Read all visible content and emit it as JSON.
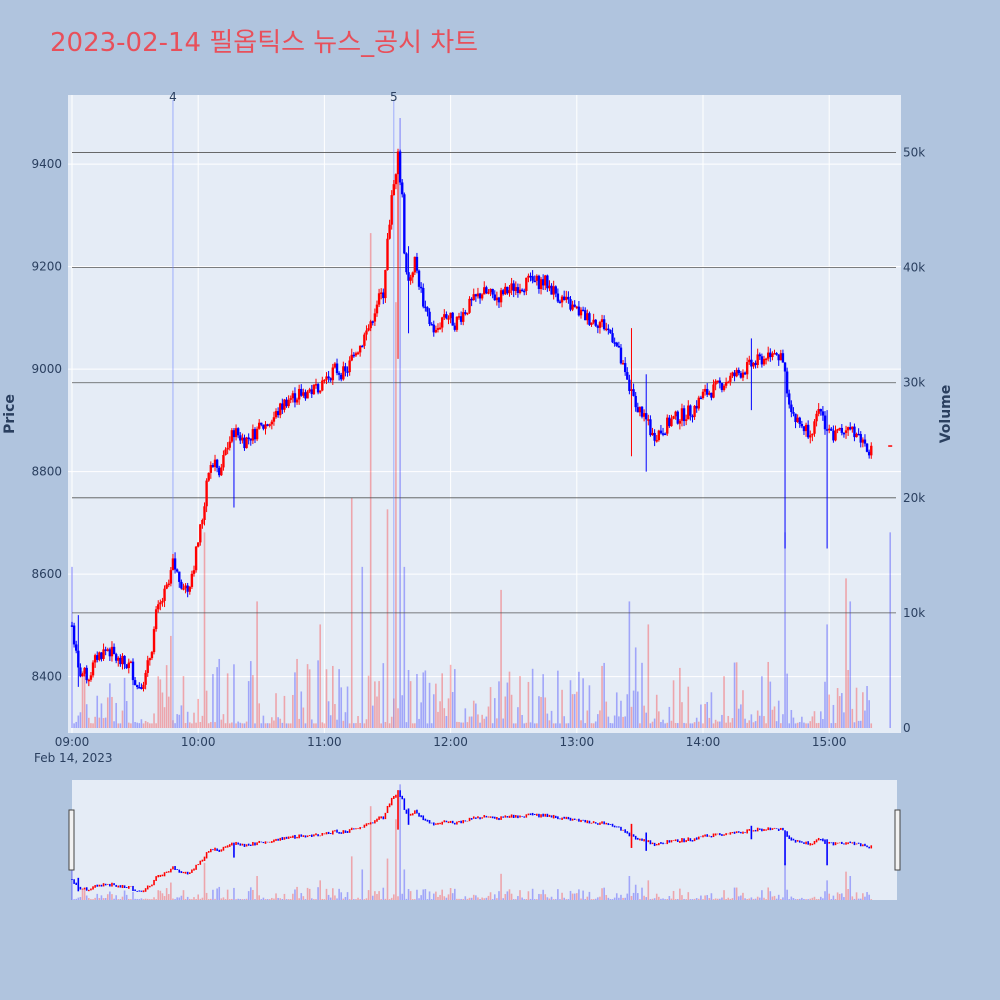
{
  "title": "2023-02-14 필옵틱스 뉴스_공시 차트",
  "colors": {
    "up": "#ff0000",
    "down": "#0000ff",
    "title": "#e8505b",
    "plot_bg": "#e5ecf6",
    "page_bg": "#b0c4de"
  },
  "chart_data": {
    "type": "candlestick",
    "ylabel": "Price",
    "y2label": "Volume",
    "ylim": [
      8290,
      9535
    ],
    "y2lim": [
      0,
      55000
    ],
    "y_ticks": [
      "8400",
      "8600",
      "8800",
      "9000",
      "9200",
      "9400"
    ],
    "y2_ticks": [
      "0",
      "10k",
      "20k",
      "30k",
      "40k",
      "50k"
    ],
    "x_ticks": [
      "09:00",
      "10:00",
      "11:00",
      "12:00",
      "13:00",
      "14:00",
      "15:00"
    ],
    "x_date_label": "Feb 14, 2023",
    "volume_hlines": [
      10000,
      20000,
      30000,
      40000,
      50000
    ],
    "events": [
      {
        "label": "4",
        "time": "09:48"
      },
      {
        "label": "5",
        "time": "11:33"
      }
    ],
    "price_path": [
      [
        "09:00",
        8500
      ],
      [
        "09:03",
        8410
      ],
      [
        "09:08",
        8400
      ],
      [
        "09:12",
        8440
      ],
      [
        "09:17",
        8455
      ],
      [
        "09:22",
        8430
      ],
      [
        "09:28",
        8420
      ],
      [
        "09:31",
        8380
      ],
      [
        "09:35",
        8400
      ],
      [
        "09:38",
        8460
      ],
      [
        "09:40",
        8520
      ],
      [
        "09:43",
        8550
      ],
      [
        "09:46",
        8580
      ],
      [
        "09:48",
        8620
      ],
      [
        "09:51",
        8590
      ],
      [
        "09:55",
        8570
      ],
      [
        "09:58",
        8620
      ],
      [
        "10:02",
        8710
      ],
      [
        "10:05",
        8800
      ],
      [
        "10:08",
        8820
      ],
      [
        "10:10",
        8790
      ],
      [
        "10:13",
        8840
      ],
      [
        "10:17",
        8880
      ],
      [
        "10:22",
        8860
      ],
      [
        "10:28",
        8880
      ],
      [
        "10:35",
        8900
      ],
      [
        "10:42",
        8940
      ],
      [
        "10:48",
        8950
      ],
      [
        "10:55",
        8960
      ],
      [
        "11:00",
        8980
      ],
      [
        "11:05",
        9000
      ],
      [
        "11:10",
        8990
      ],
      [
        "11:13",
        9020
      ],
      [
        "11:17",
        9050
      ],
      [
        "11:21",
        9080
      ],
      [
        "11:25",
        9130
      ],
      [
        "11:28",
        9150
      ],
      [
        "11:30",
        9250
      ],
      [
        "11:32",
        9330
      ],
      [
        "11:35",
        9420
      ],
      [
        "11:37",
        9330
      ],
      [
        "11:38",
        9230
      ],
      [
        "11:40",
        9170
      ],
      [
        "11:43",
        9210
      ],
      [
        "11:46",
        9150
      ],
      [
        "11:49",
        9100
      ],
      [
        "11:53",
        9070
      ],
      [
        "11:57",
        9110
      ],
      [
        "12:02",
        9090
      ],
      [
        "12:08",
        9120
      ],
      [
        "12:15",
        9150
      ],
      [
        "12:22",
        9140
      ],
      [
        "12:30",
        9160
      ],
      [
        "12:38",
        9170
      ],
      [
        "12:45",
        9170
      ],
      [
        "12:52",
        9140
      ],
      [
        "12:58",
        9120
      ],
      [
        "13:05",
        9100
      ],
      [
        "13:12",
        9090
      ],
      [
        "13:18",
        9060
      ],
      [
        "13:22",
        9000
      ],
      [
        "13:25",
        8960
      ],
      [
        "13:28",
        8930
      ],
      [
        "13:32",
        8910
      ],
      [
        "13:36",
        8870
      ],
      [
        "13:40",
        8880
      ],
      [
        "13:45",
        8900
      ],
      [
        "13:50",
        8910
      ],
      [
        "13:55",
        8920
      ],
      [
        "14:00",
        8950
      ],
      [
        "14:05",
        8960
      ],
      [
        "14:12",
        8980
      ],
      [
        "14:20",
        9000
      ],
      [
        "14:28",
        9020
      ],
      [
        "14:34",
        9040
      ],
      [
        "14:38",
        9010
      ],
      [
        "14:41",
        8940
      ],
      [
        "14:44",
        8900
      ],
      [
        "14:47",
        8890
      ],
      [
        "14:50",
        8880
      ],
      [
        "14:53",
        8890
      ],
      [
        "14:56",
        8920
      ],
      [
        "14:59",
        8880
      ],
      [
        "15:02",
        8870
      ],
      [
        "15:06",
        8880
      ],
      [
        "15:10",
        8890
      ],
      [
        "15:14",
        8870
      ],
      [
        "15:18",
        8850
      ],
      [
        "15:20",
        8840
      ]
    ],
    "spikes": [
      [
        "09:03",
        8380,
        8520
      ],
      [
        "10:17",
        8730,
        8870
      ],
      [
        "11:35",
        9020,
        9430
      ],
      [
        "11:40",
        9070,
        9240
      ],
      [
        "13:26",
        8830,
        9080
      ],
      [
        "13:33",
        8800,
        8990
      ],
      [
        "14:23",
        8920,
        9060
      ],
      [
        "14:39",
        8650,
        9010
      ],
      [
        "14:59",
        8650,
        8920
      ]
    ],
    "volume_peaks": [
      [
        "09:00",
        14000
      ],
      [
        "09:47",
        8000
      ],
      [
        "10:03",
        17000
      ],
      [
        "10:10",
        6000
      ],
      [
        "10:28",
        11000
      ],
      [
        "10:47",
        6000
      ],
      [
        "10:58",
        9000
      ],
      [
        "11:13",
        20000
      ],
      [
        "11:18",
        14000
      ],
      [
        "11:22",
        43000
      ],
      [
        "11:30",
        19000
      ],
      [
        "11:34",
        37000
      ],
      [
        "11:36",
        53000
      ],
      [
        "11:38",
        14000
      ],
      [
        "11:48",
        5000
      ],
      [
        "12:24",
        12000
      ],
      [
        "12:37",
        4000
      ],
      [
        "13:25",
        11000
      ],
      [
        "13:28",
        7000
      ],
      [
        "13:34",
        9000
      ],
      [
        "14:28",
        4500
      ],
      [
        "14:39",
        17000
      ],
      [
        "14:59",
        9000
      ],
      [
        "15:08",
        13000
      ],
      [
        "15:10",
        11000
      ],
      [
        "15:29",
        17000
      ]
    ],
    "last_point": [
      "15:29",
      8850
    ]
  }
}
